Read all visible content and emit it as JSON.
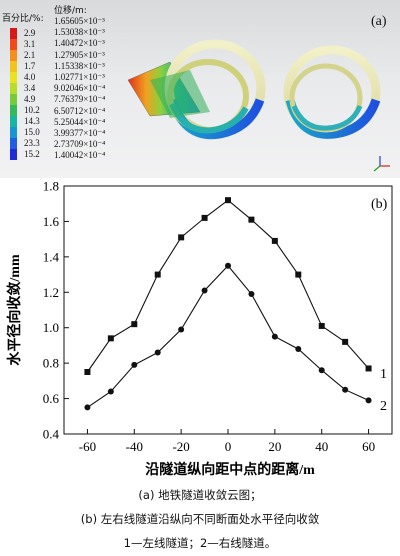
{
  "panel_a": {
    "label": "(a)",
    "legend_left_title": "百分比/%:",
    "legend_right_title": "位移/m:",
    "percent_values": [
      "2.9",
      "3.1",
      "2.1",
      "1.7",
      "4.0",
      "3.4",
      "4.9",
      "10.2",
      "14.3",
      "15.0",
      "23.3",
      "15.2"
    ],
    "displacement_values": [
      "1.65605×10⁻³",
      "1.53038×10⁻³",
      "1.40472×10⁻³",
      "1.27905×10⁻³",
      "1.15338×10⁻³",
      "1.02771×10⁻³",
      "9.02046×10⁻⁴",
      "7.76379×10⁻⁴",
      "6.50712×10⁻⁴",
      "5.25044×10⁻⁴",
      "3.99377×10⁻⁴",
      "2.73709×10⁻⁴",
      "1.40042×10⁻⁴"
    ],
    "colorbar": [
      "#d7191c",
      "#f04a1a",
      "#f68e1c",
      "#f2c31d",
      "#e7e41f",
      "#b7dd2a",
      "#74cc3a",
      "#34b85a",
      "#18b5a2",
      "#1796d2",
      "#1e5ee2",
      "#1f2bd6"
    ]
  },
  "panel_b": {
    "label": "(b)",
    "curve1_label": "1",
    "curve2_label": "2"
  },
  "chart_data": {
    "type": "line",
    "xlabel": "沿隧道纵向距中点的距离/m",
    "ylabel": "水平径向收敛/mm",
    "xlim": [
      -70,
      70
    ],
    "ylim": [
      0.4,
      1.8
    ],
    "xticks": [
      -60,
      -40,
      -20,
      0,
      20,
      40,
      60
    ],
    "yticks": [
      0.4,
      0.6,
      0.8,
      1.0,
      1.2,
      1.4,
      1.6,
      1.8
    ],
    "x": [
      -60,
      -50,
      -40,
      -30,
      -20,
      -10,
      0,
      10,
      20,
      30,
      40,
      50,
      60
    ],
    "series": [
      {
        "name": "1",
        "marker": "square",
        "values": [
          0.75,
          0.94,
          1.02,
          1.3,
          1.51,
          1.62,
          1.72,
          1.61,
          1.49,
          1.3,
          1.01,
          0.92,
          0.77
        ]
      },
      {
        "name": "2",
        "marker": "circle",
        "values": [
          0.55,
          0.64,
          0.79,
          0.86,
          0.99,
          1.21,
          1.35,
          1.19,
          0.95,
          0.88,
          0.76,
          0.65,
          0.59
        ]
      }
    ]
  },
  "caption": {
    "line1": "(a)  地铁隧道收敛云图；",
    "line2": "(b) 左右线隧道沿纵向不同断面处水平径向收敛",
    "line3": "1—左线隧道；2—右线隧道。"
  }
}
